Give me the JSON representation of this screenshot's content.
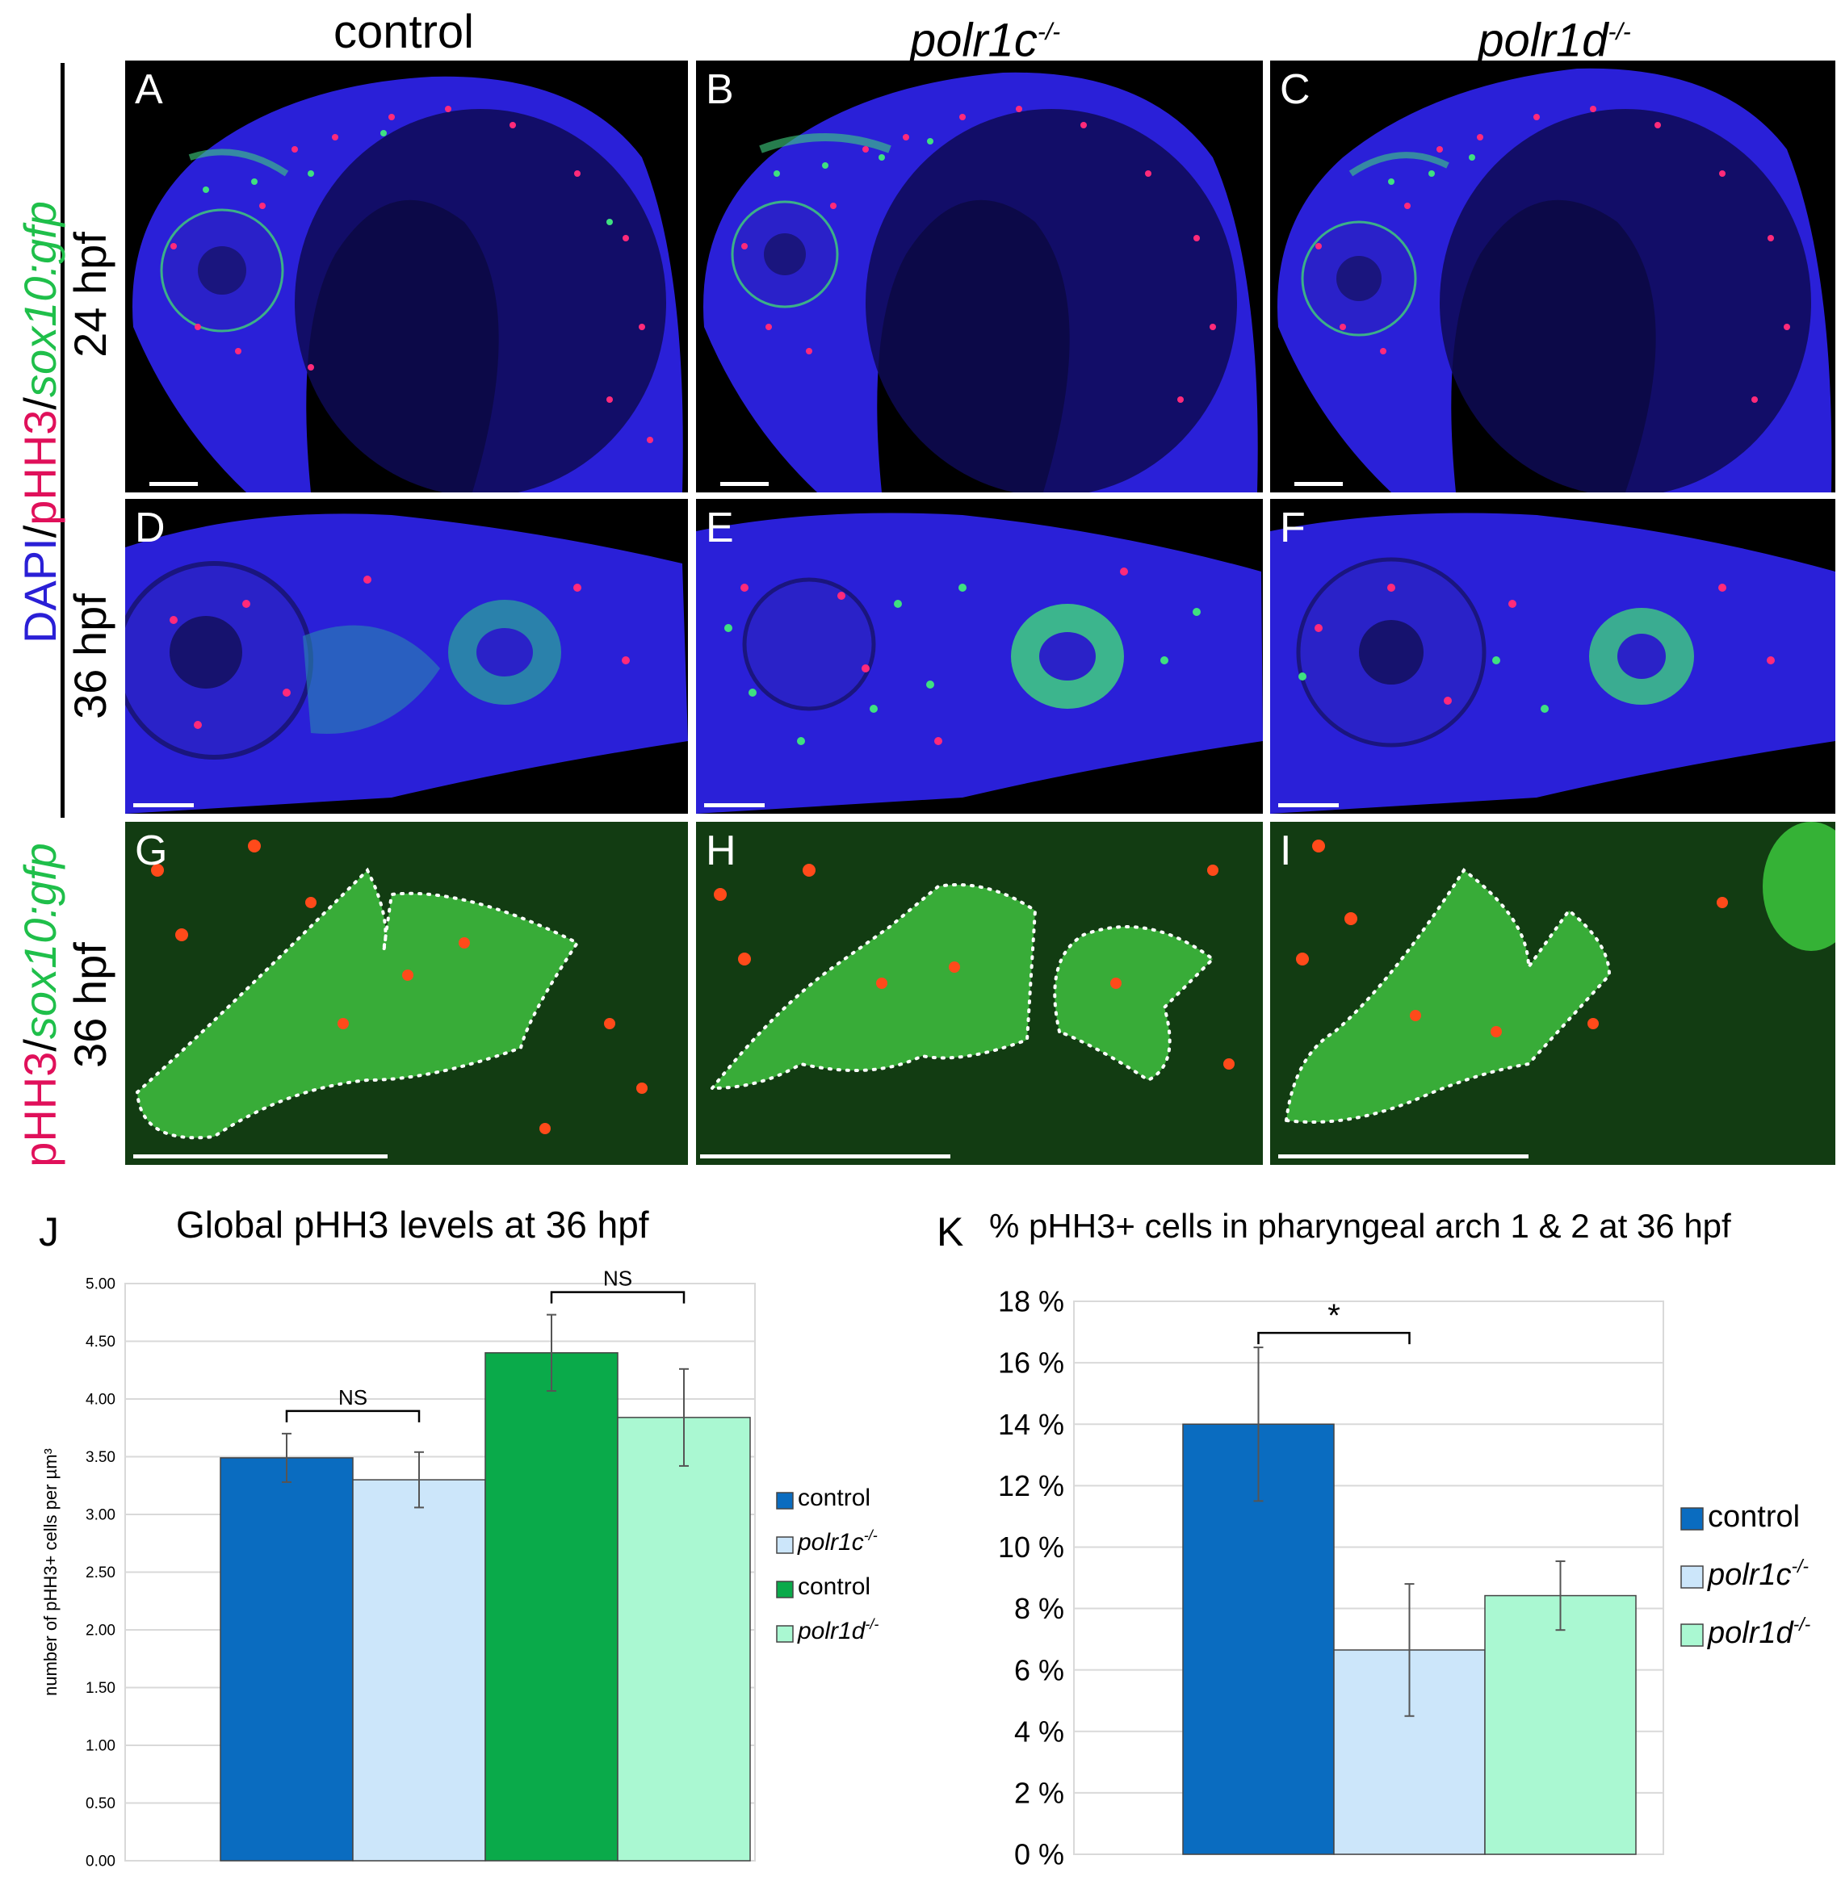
{
  "columns": [
    {
      "gene": "control",
      "sup": ""
    },
    {
      "gene": "polr1c",
      "sup": "-/-"
    },
    {
      "gene": "polr1d",
      "sup": "-/-"
    }
  ],
  "row_labels": {
    "r1": "24 hpf",
    "r2": "36 hpf",
    "r3": "36 hpf",
    "stain_top": {
      "p1": "DAPI",
      "sep1": "/",
      "p2": "pHH3",
      "sep2": "/",
      "p3": "sox10:gfp"
    },
    "stain_bottom": {
      "p1": "pHH3",
      "sep": "/",
      "p2": "sox10:gfp"
    }
  },
  "panels": [
    "A",
    "B",
    "C",
    "D",
    "E",
    "F",
    "G",
    "H",
    "I"
  ],
  "colors": {
    "dapi": "#2a1fd6",
    "phh3": "#e0105a",
    "gfp": "#1fbf4a",
    "control_blue": "#0a6cc0",
    "polr1c_light": "#cce6fa",
    "control_green": "#0aaa4a",
    "polr1d_mint": "#aaf8d2"
  },
  "chart_data": [
    {
      "id": "J",
      "type": "bar",
      "title": "Global pHH3 levels at 36 hpf",
      "ylabel": "number of pHH3+ cells per µm³",
      "ylim": [
        0,
        5
      ],
      "yticks": [
        "0.00",
        "0.50",
        "1.00",
        "1.50",
        "2.00",
        "2.50",
        "3.00",
        "3.50",
        "4.00",
        "4.50",
        "5.00"
      ],
      "grid": true,
      "legend_position": "right",
      "series": [
        {
          "name": "control",
          "name_sup": "",
          "value": 3.49,
          "error": 0.21,
          "color": "#0a6cc0"
        },
        {
          "name": "polr1c",
          "name_sup": "-/-",
          "value": 3.3,
          "error": 0.24,
          "color": "#cce6fa"
        },
        {
          "name": "control",
          "name_sup": "",
          "value": 4.4,
          "error": 0.33,
          "color": "#0aaa4a"
        },
        {
          "name": "polr1d",
          "name_sup": "-/-",
          "value": 3.84,
          "error": 0.42,
          "color": "#aaf8d2"
        }
      ],
      "annotations": [
        {
          "text": "NS",
          "from": 0,
          "to": 1
        },
        {
          "text": "NS",
          "from": 2,
          "to": 3
        }
      ]
    },
    {
      "id": "K",
      "type": "bar",
      "title": "% pHH3+ cells in pharyngeal arch 1 & 2 at 36 hpf",
      "ylabel": "",
      "ylim": [
        0,
        18
      ],
      "yticks": [
        "0 %",
        "2 %",
        "4 %",
        "6 %",
        "8 %",
        "10 %",
        "12 %",
        "14 %",
        "16 %",
        "18 %"
      ],
      "grid": true,
      "legend_position": "right",
      "series": [
        {
          "name": "control",
          "name_sup": "",
          "value": 14.0,
          "error": 2.5,
          "color": "#0a6cc0"
        },
        {
          "name": "polr1c",
          "name_sup": "-/-",
          "value": 6.65,
          "error": 2.15,
          "color": "#cce6fa"
        },
        {
          "name": "polr1d",
          "name_sup": "-/-",
          "value": 8.42,
          "error": 1.12,
          "color": "#aaf8d2"
        }
      ],
      "annotations": [
        {
          "text": "*",
          "from": 0,
          "to": 1
        }
      ]
    }
  ]
}
